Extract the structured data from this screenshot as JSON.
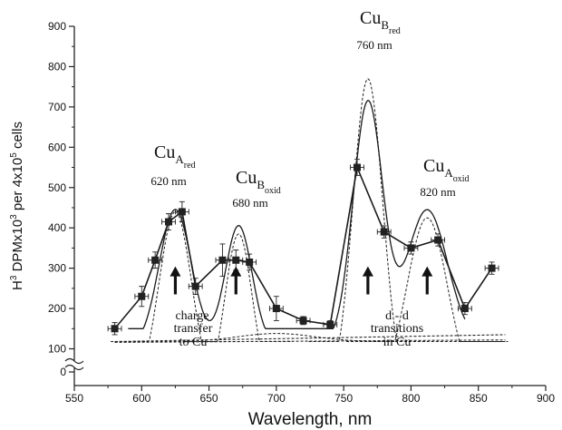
{
  "chart_data": {
    "type": "line",
    "xlabel": "Wavelength, nm",
    "ylabel_parts": [
      "H",
      "3",
      " DPMx10",
      "3",
      " per 4x10",
      "5",
      " cells"
    ],
    "xlim": [
      550,
      900
    ],
    "ylim": [
      0,
      900
    ],
    "axis_break": "between 0 and 100 on y-axis",
    "x_ticks": [
      550,
      600,
      650,
      700,
      750,
      800,
      850,
      900
    ],
    "y_ticks": [
      0,
      100,
      200,
      300,
      400,
      500,
      600,
      700,
      800,
      900
    ],
    "grid": false,
    "series": [
      {
        "style": "solid line with square markers and error bars",
        "x": [
          580,
          600,
          610,
          620,
          630,
          640,
          660,
          670,
          680,
          700,
          720,
          740,
          760,
          780,
          800,
          820,
          840,
          860
        ],
        "y": [
          150,
          230,
          320,
          415,
          440,
          255,
          320,
          320,
          315,
          200,
          170,
          160,
          550,
          390,
          350,
          370,
          200,
          300
        ],
        "y_err": [
          15,
          25,
          20,
          20,
          25,
          20,
          40,
          25,
          20,
          30,
          10,
          10,
          20,
          15,
          15,
          15,
          15,
          15
        ],
        "x_err": [
          5,
          5,
          5,
          5,
          5,
          5,
          5,
          5,
          5,
          5,
          5,
          5,
          5,
          5,
          5,
          5,
          5,
          5
        ]
      },
      {
        "style": "smooth solid fitted envelope"
      },
      {
        "style": "dashed Gaussian components",
        "components": [
          {
            "center": 625,
            "amplitude": 440,
            "width": 12
          },
          {
            "center": 672,
            "amplitude": 385,
            "width": 10
          },
          {
            "center": 768,
            "amplitude": 770,
            "width": 11
          },
          {
            "center": 812,
            "amplitude": 425,
            "width": 15
          }
        ],
        "baselines": [
          {
            "from": [
              580,
              118
            ],
            "to": [
              870,
              135
            ]
          },
          {
            "from": [
              580,
              116
            ],
            "to": [
              870,
              122
            ]
          }
        ]
      }
    ],
    "arrows_at_x": [
      625,
      670,
      768,
      812
    ],
    "annotations": [
      {
        "id": "cua_red",
        "main": "Cu",
        "sub": "A",
        "subsub": "red",
        "nm": "620 nm"
      },
      {
        "id": "cub_oxid",
        "main": "Cu",
        "sub": "B",
        "subsub": "oxid",
        "nm": "680 nm"
      },
      {
        "id": "cub_red",
        "main": "Cu",
        "sub": "B",
        "subsub": "red",
        "nm": "760 nm"
      },
      {
        "id": "cua_oxid",
        "main": "Cu",
        "sub": "A",
        "subsub": "oxid",
        "nm": "820 nm"
      }
    ],
    "notes": {
      "charge_transfer": [
        "charge",
        "transfer",
        "to Cu"
      ],
      "d_d": [
        "d - d",
        "transitions",
        "in Cu"
      ]
    }
  }
}
